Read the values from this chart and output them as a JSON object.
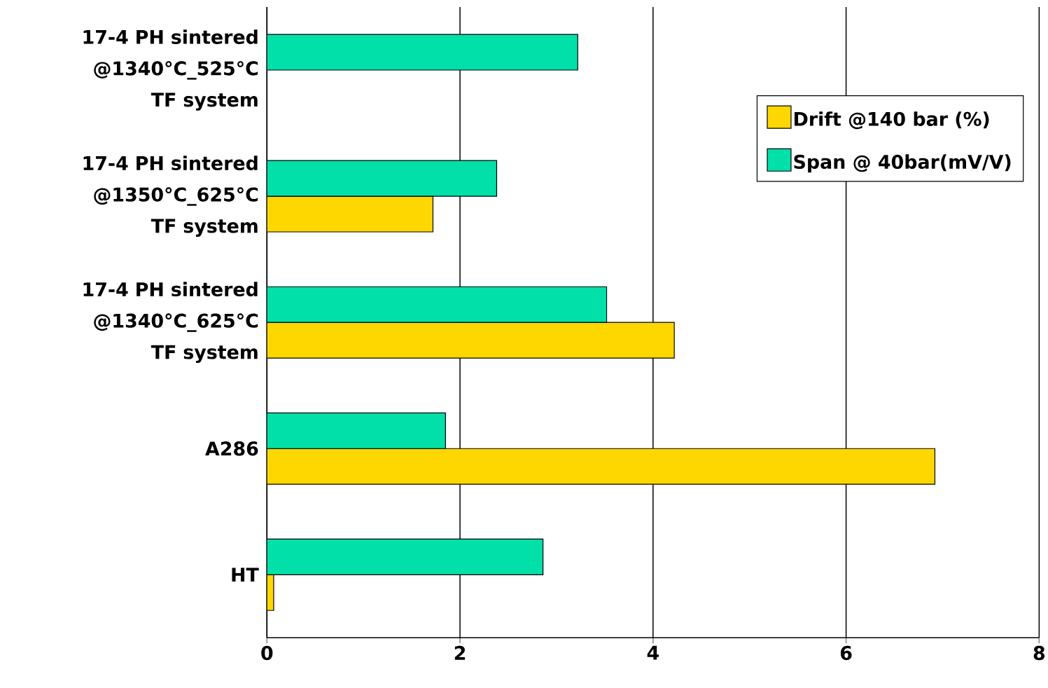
{
  "chart_data": {
    "type": "bar",
    "orientation": "horizontal",
    "categories": [
      "17-4 PH sintered @1340°C_525°C TF system",
      "17-4 PH sintered @1350°C_625°C TF system",
      "17-4 PH sintered @1340°C_625°C TF system",
      "A286",
      "HT"
    ],
    "series": [
      {
        "name": "Drift @140 bar (%)",
        "color": "#ffd700",
        "values": [
          null,
          1.72,
          4.22,
          6.92,
          0.07
        ]
      },
      {
        "name": "Span @ 40bar(mV/V)",
        "color": "#00e0a8",
        "values": [
          3.22,
          2.38,
          3.52,
          1.85,
          2.86
        ]
      }
    ],
    "xlim": [
      0,
      8
    ],
    "xticks": [
      0,
      2,
      4,
      6,
      8
    ],
    "grid": "x",
    "legend": "top right"
  }
}
